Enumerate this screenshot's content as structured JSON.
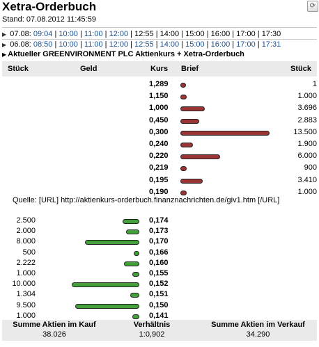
{
  "title": "Xetra-Orderbuch",
  "stand": "Stand: 07.08.2012 11:45:59",
  "refresh_icon": "refresh-icon",
  "dates": [
    {
      "date": "07.08:",
      "first": "09:04",
      "times": [
        "10:00",
        "11:00",
        "12:00",
        "12:55",
        "14:00",
        "15:00",
        "16:00",
        "17:00",
        "17:30"
      ],
      "links_upto": 4
    },
    {
      "date": "06.08:",
      "first": "08:50",
      "times": [
        "10:00",
        "11:00",
        "12:00",
        "12:55",
        "14:00",
        "15:00",
        "16:00",
        "17:00",
        "17:31"
      ],
      "links_upto": 10
    }
  ],
  "heading": "Aktueller GREENVIRONMENT PLC Aktienkurs + Xetra-Orderbuch",
  "columns": {
    "stueck_left": "Stück",
    "geld": "Geld",
    "kurs": "Kurs",
    "brief": "Brief",
    "stueck_right": "Stück"
  },
  "ask": [
    {
      "kurs": "1,289",
      "stueck": "1",
      "volume": 1
    },
    {
      "kurs": "1,150",
      "stueck": "1.000",
      "volume": 1000
    },
    {
      "kurs": "1,000",
      "stueck": "3.696",
      "volume": 3696
    },
    {
      "kurs": "0,450",
      "stueck": "2.883",
      "volume": 2883
    },
    {
      "kurs": "0,300",
      "stueck": "13.500",
      "volume": 13500
    },
    {
      "kurs": "0,240",
      "stueck": "1.900",
      "volume": 1900
    },
    {
      "kurs": "0,220",
      "stueck": "6.000",
      "volume": 6000
    },
    {
      "kurs": "0,219",
      "stueck": "900",
      "volume": 900
    },
    {
      "kurs": "0,195",
      "stueck": "3.410",
      "volume": 3410
    },
    {
      "kurs": "0,190",
      "stueck": "1.000",
      "volume": 1000
    }
  ],
  "source": "Quelle: [URL] http://aktienkurs-orderbuch.finanznachrichten.de/giv1.htm [/URL]",
  "bid": [
    {
      "kurs": "0,174",
      "stueck": "2.500",
      "volume": 2500
    },
    {
      "kurs": "0,173",
      "stueck": "2.000",
      "volume": 2000
    },
    {
      "kurs": "0,170",
      "stueck": "8.000",
      "volume": 8000
    },
    {
      "kurs": "0,166",
      "stueck": "500",
      "volume": 500
    },
    {
      "kurs": "0,160",
      "stueck": "2.222",
      "volume": 2222
    },
    {
      "kurs": "0,155",
      "stueck": "1.000",
      "volume": 1000
    },
    {
      "kurs": "0,152",
      "stueck": "10.000",
      "volume": 10000
    },
    {
      "kurs": "0,151",
      "stueck": "1.304",
      "volume": 1304
    },
    {
      "kurs": "0,150",
      "stueck": "9.500",
      "volume": 9500
    },
    {
      "kurs": "0,141",
      "stueck": "1.000",
      "volume": 1000
    }
  ],
  "footer": {
    "kauf_label": "Summe Aktien im Kauf",
    "kauf_value": "38.026",
    "ratio_label": "Verhältnis",
    "ratio_value": "1:0,902",
    "verkauf_label": "Summe Aktien im Verkauf",
    "verkauf_value": "34.290"
  },
  "colors": {
    "ask_bar": "#9a3535",
    "bid_bar": "#44a03a",
    "link": "#1a4f8f",
    "header_bg": "#eaeaea"
  }
}
